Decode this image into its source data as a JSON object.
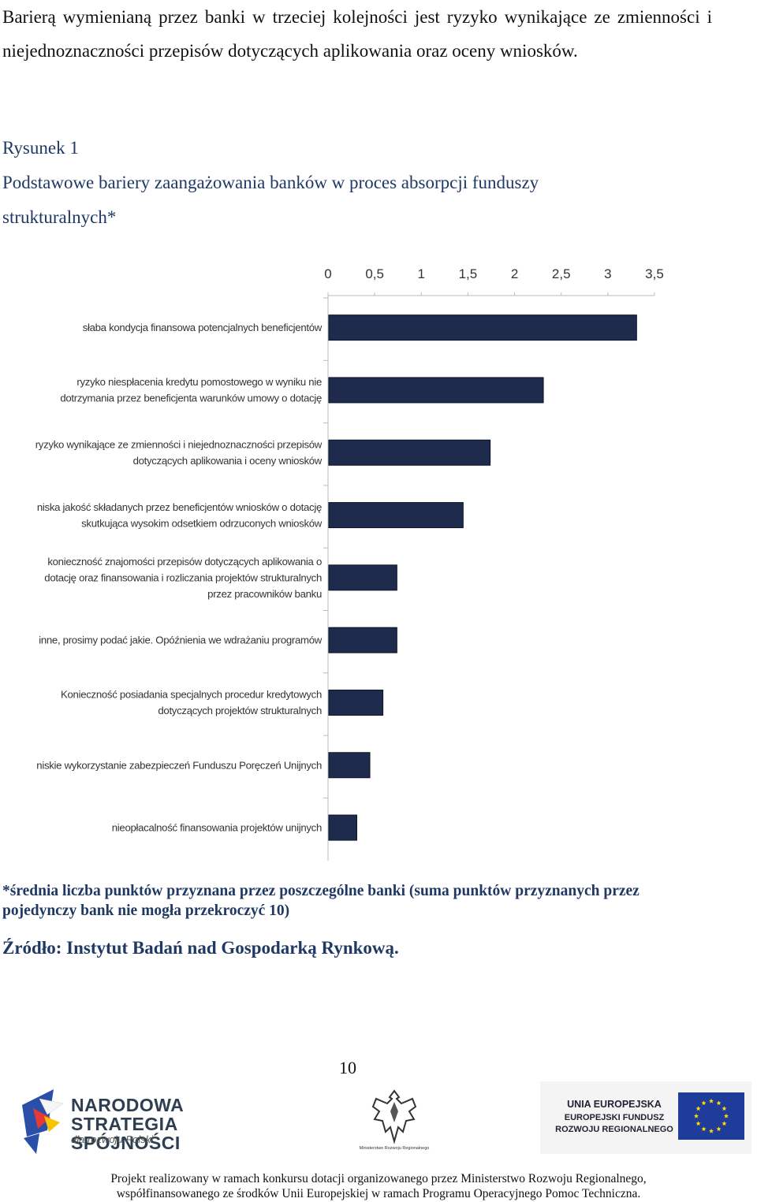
{
  "paragraph": "Barierą wymienianą przez banki w trzeciej kolejności jest ryzyko wynikające ze zmienności i niejednoznaczności przepisów dotyczących aplikowania oraz oceny wniosków.",
  "figure": {
    "number": "Rysunek 1",
    "title_line1": "Podstawowe bariery zaangażowania banków w proces absorpcji funduszy",
    "title_line2": "strukturalnych*"
  },
  "chart_data": {
    "type": "bar",
    "orientation": "horizontal",
    "xlim": [
      0,
      3.5
    ],
    "x_ticks": [
      "0",
      "0,5",
      "1",
      "1,5",
      "2",
      "2,5",
      "3",
      "3,5"
    ],
    "x_axis_position": "top",
    "grid": false,
    "bar_color": "#1f2b4d",
    "categories": [
      [
        "słaba kondycja finansowa potencjalnych beneficjentów"
      ],
      [
        "ryzyko niespłacenia kredytu pomostowego w wyniku nie",
        "dotrzymania przez beneficjenta warunków umowy o dotację"
      ],
      [
        "ryzyko wynikające ze zmienności i niejednoznaczności przepisów",
        "dotyczących aplikowania i oceny wniosków"
      ],
      [
        "niska jakość składanych przez beneficjentów wniosków o dotację",
        "skutkująca wysokim odsetkiem odrzuconych wniosków"
      ],
      [
        "konieczność znajomości przepisów dotyczących aplikowania o",
        "dotację oraz finansowania i rozliczania projektów strukturalnych",
        "przez pracowników banku"
      ],
      [
        "inne, prosimy podać jakie. Opóźnienia we wdrażaniu programów"
      ],
      [
        "Konieczność posiadania specjalnych procedur kredytowych",
        "dotyczących projektów strukturalnych"
      ],
      [
        "niskie wykorzystanie zabezpieczeń Funduszu Poręczeń Unijnych"
      ],
      [
        "nieopłacalność finansowania projektów unijnych"
      ]
    ],
    "values": [
      3.3,
      2.3,
      1.73,
      1.44,
      0.73,
      0.73,
      0.58,
      0.44,
      0.3
    ]
  },
  "note": "*średnia liczba punktów przyznana przez poszczególne banki (suma punktów przyznanych przez pojedynczy bank nie mogła przekroczyć 10)",
  "source": "Źródło: Instytut Badań nad Gospodarką Rynkową.",
  "page_number": "10",
  "logos": {
    "nss_line1": "NARODOWA",
    "nss_line2": "STRATEGIA SPÓJNOŚCI",
    "nss_line3": "dla rozwoju Polski",
    "ministry": "Ministerstwo Rozwoju Regionalnego",
    "eu_line1": "UNIA EUROPEJSKA",
    "eu_line2": "EUROPEJSKI FUNDUSZ",
    "eu_line3": "ROZWOJU REGIONALNEGO"
  },
  "footer": {
    "line1": "Projekt realizowany w ramach konkursu dotacji organizowanego przez Ministerstwo Rozwoju Regionalnego,",
    "line2": "współfinansowanego ze środków Unii Europejskiej w ramach Programu Operacyjnego Pomoc Techniczna."
  },
  "colors": {
    "heading": "#1f3864",
    "bar": "#1f2b4d"
  }
}
